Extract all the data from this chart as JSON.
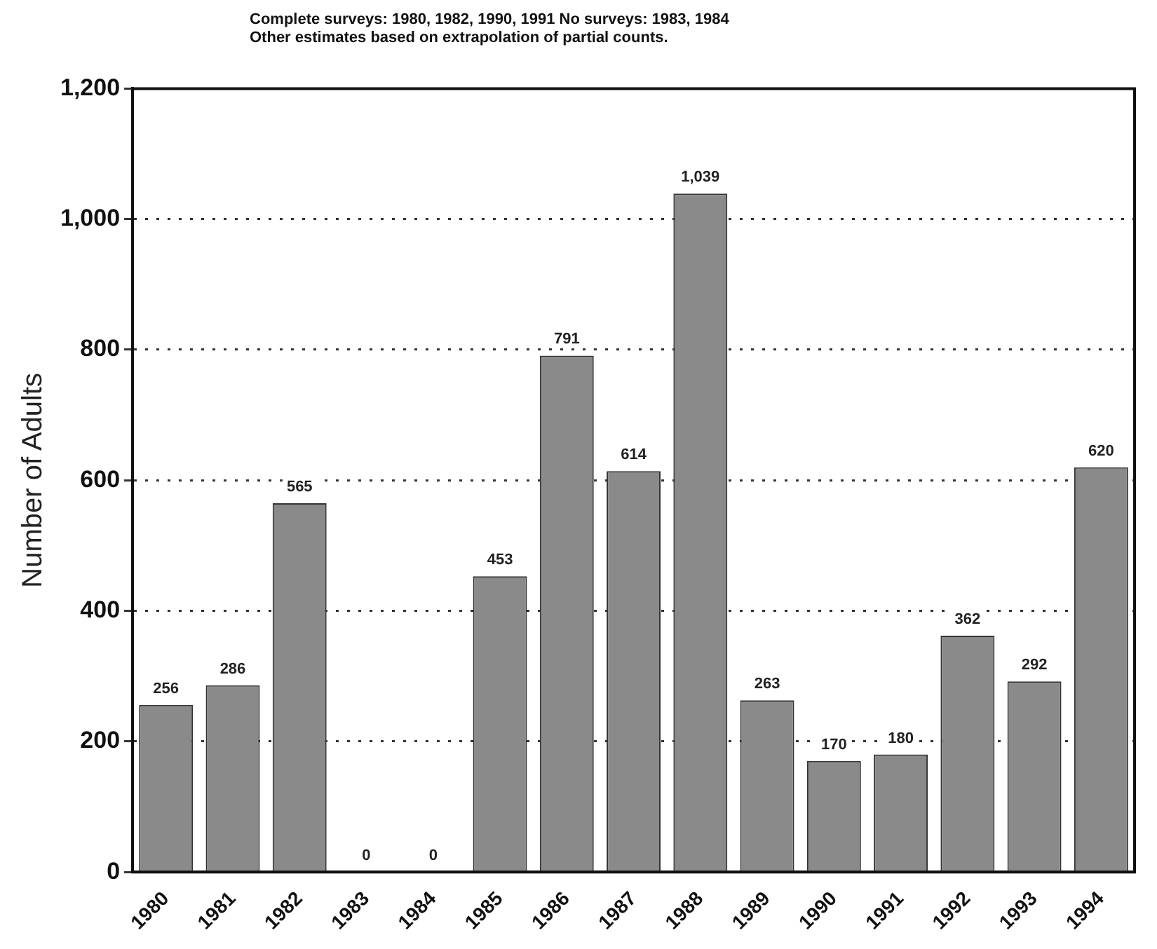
{
  "chart_data": {
    "type": "bar",
    "title": "Complete surveys: 1980, 1982, 1990, 1991 No surveys: 1983, 1984",
    "subtitle": "Other estimates based on extrapolation of partial counts.",
    "ylabel": "Number of Adults",
    "categories": [
      "1980",
      "1981",
      "1982",
      "1983",
      "1984",
      "1985",
      "1986",
      "1987",
      "1988",
      "1989",
      "1990",
      "1991",
      "1992",
      "1993",
      "1994"
    ],
    "values": [
      256,
      286,
      565,
      0,
      0,
      453,
      791,
      614,
      1039,
      263,
      170,
      180,
      362,
      292,
      620
    ],
    "value_labels": [
      "256",
      "286",
      "565",
      "0",
      "0",
      "453",
      "791",
      "614",
      "1,039",
      "263",
      "170",
      "180",
      "362",
      "292",
      "620"
    ],
    "color": "#8a8a8a",
    "ylim": [
      0,
      1200
    ],
    "yticks": [
      0,
      {
        "value": 200,
        "label": "200"
      },
      {
        "value": 400,
        "label": "400"
      },
      {
        "value": 600,
        "label": "600"
      },
      {
        "value": 800,
        "label": "800"
      },
      {
        "value": 1000,
        "label": "1,000"
      },
      {
        "value": 1200,
        "label": "1,200"
      }
    ],
    "grid": "y",
    "legend": false
  }
}
